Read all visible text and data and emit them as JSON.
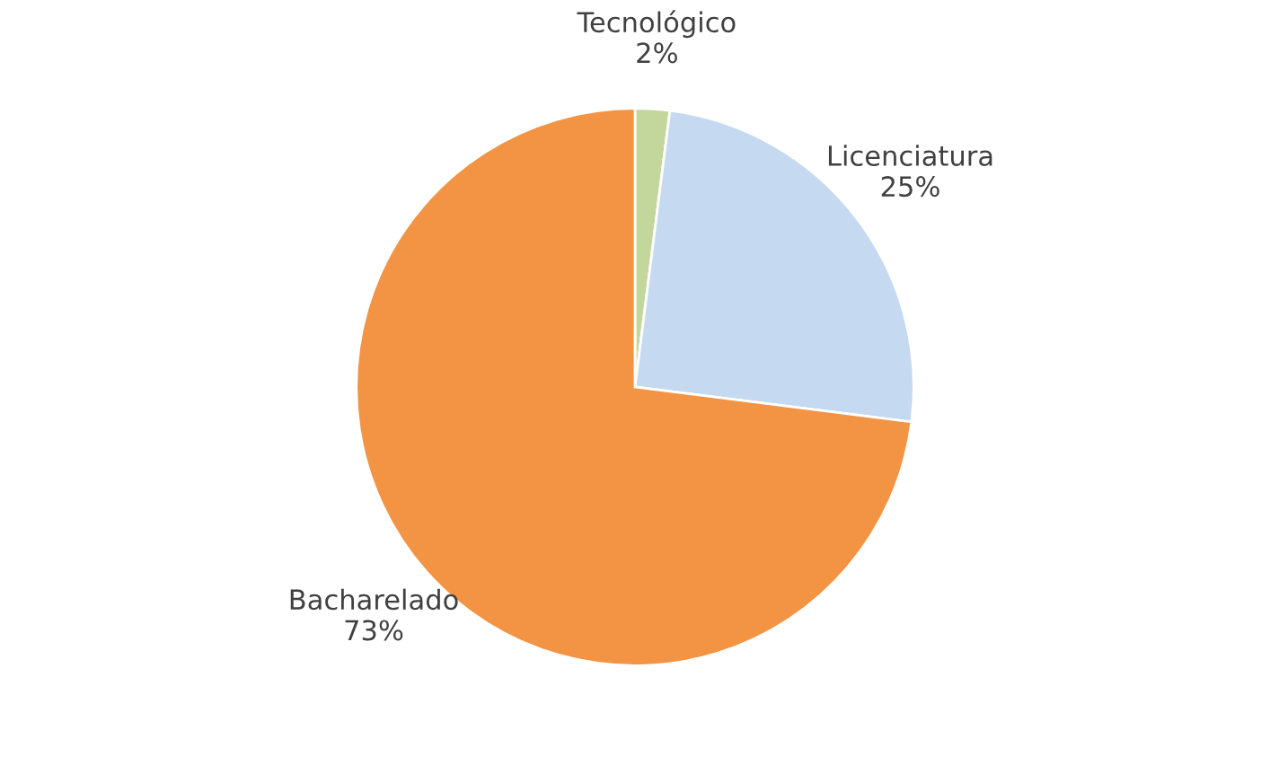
{
  "chart_data": {
    "type": "pie",
    "categories": [
      "Tecnológico",
      "Licenciatura",
      "Bacharelado"
    ],
    "values": [
      2,
      25,
      73
    ],
    "value_labels": [
      "2%",
      "25%",
      "73%"
    ],
    "colors": [
      "#c3d69b",
      "#c5d9f1",
      "#f39444"
    ]
  }
}
